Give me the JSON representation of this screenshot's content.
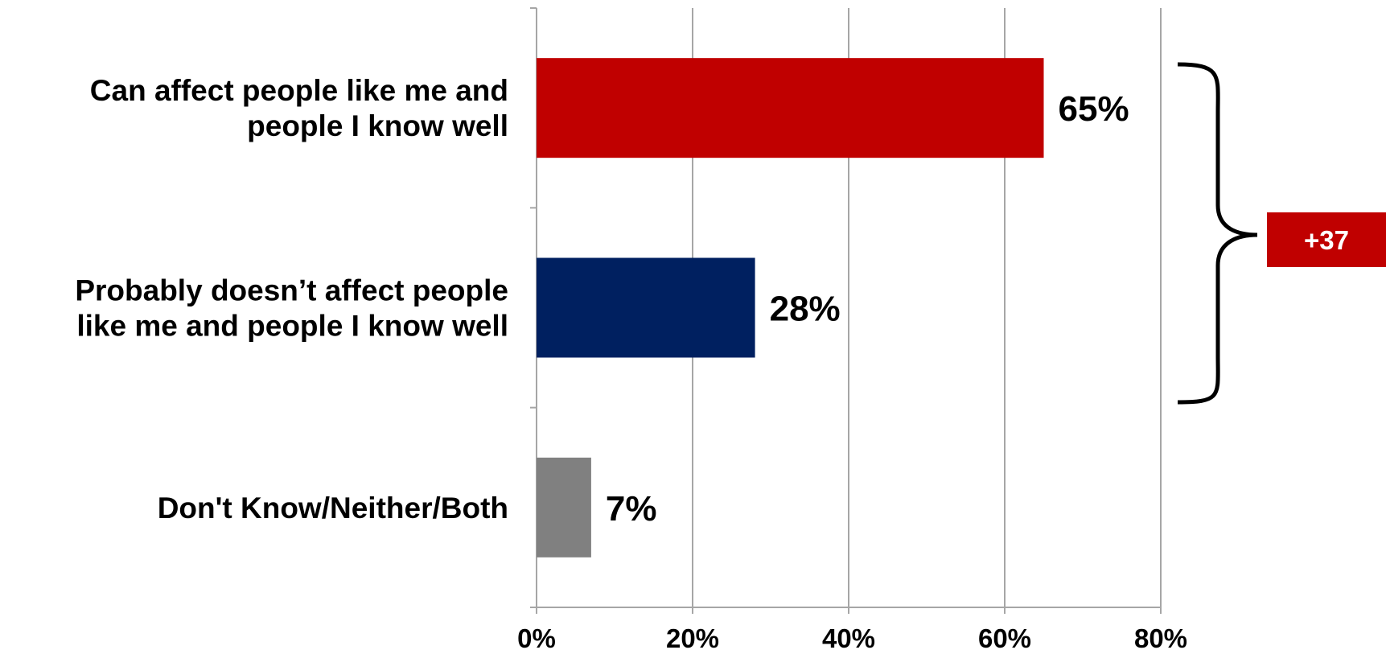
{
  "chart_data": {
    "type": "bar",
    "orientation": "horizontal",
    "categories": [
      [
        "Can affect people like me and",
        "people I know well"
      ],
      [
        "Probably doesn’t affect people",
        "like me and people I know well"
      ],
      [
        "Don't Know/Neither/Both"
      ]
    ],
    "values": [
      65,
      28,
      7
    ],
    "data_labels": [
      "65%",
      "28%",
      "7%"
    ],
    "bar_colors": [
      "#c00000",
      "#002060",
      "#808080"
    ],
    "xlim": [
      0,
      80
    ],
    "x_ticks": [
      0,
      20,
      40,
      60,
      80
    ],
    "x_tick_labels": [
      "0%",
      "20%",
      "40%",
      "60%",
      "80%"
    ],
    "grid": true,
    "legend": "none",
    "annotation": {
      "type": "brace",
      "spans": "bars 1-2",
      "text": "+37",
      "color": "#c00000"
    }
  }
}
